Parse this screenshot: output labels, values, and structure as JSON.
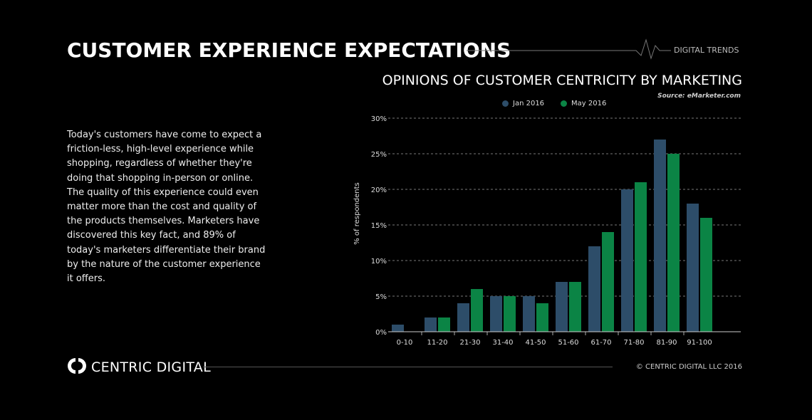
{
  "header": {
    "title": "CUSTOMER EXPERIENCE EXPECTATIONS",
    "tag": "DIGITAL TRENDS"
  },
  "body_text": "Today's customers have come to expect a friction-less, high-level experience while shopping, regardless of whether they're doing that shopping in-person or online. The quality of this experience could even matter more than the cost and quality of the products themselves. Marketers have discovered this key fact, and 89% of today's marketers differentiate their brand by the nature of the customer experience it offers.",
  "footer": {
    "brand": "CENTRIC DIGITAL",
    "copyright": "© CENTRIC DIGITAL LLC 2016"
  },
  "chart_data": {
    "type": "bar",
    "title": "OPINIONS OF CUSTOMER CENTRICITY BY MARKETING",
    "source": "Source: eMarketer.com",
    "ylabel": "% of respondents",
    "xlabel": "",
    "ylim": [
      0,
      30
    ],
    "yticks": [
      "0%",
      "5%",
      "10%",
      "15%",
      "20%",
      "25%",
      "30%"
    ],
    "grid": true,
    "legend": "top",
    "categories": [
      "0-10",
      "11-20",
      "21-30",
      "31-40",
      "41-50",
      "51-60",
      "61-70",
      "71-80",
      "81-90",
      "91-100"
    ],
    "series": [
      {
        "name": "Jan 2016",
        "color": "#2d4d69",
        "values": [
          1,
          2,
          4,
          5,
          5,
          7,
          12,
          20,
          27,
          18
        ]
      },
      {
        "name": "May 2016",
        "color": "#0b8445",
        "values": [
          0,
          2,
          6,
          5,
          4,
          7,
          14,
          21,
          25,
          16
        ]
      }
    ]
  }
}
